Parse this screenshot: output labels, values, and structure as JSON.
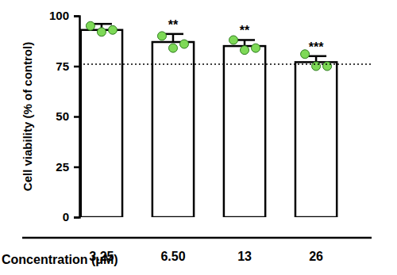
{
  "chart_data": {
    "type": "bar",
    "y_label": "Cell viability  (% of control)",
    "x_label": "Concentration (μM)",
    "categories": [
      "3.25",
      "6.50",
      "13",
      "26"
    ],
    "values": [
      93,
      87,
      85,
      77
    ],
    "errors": [
      3,
      4,
      3,
      3
    ],
    "points": {
      "color": "#7ed957",
      "values": [
        [
          95,
          92,
          93
        ],
        [
          90,
          84,
          86
        ],
        [
          88,
          83,
          84
        ],
        [
          81,
          75,
          75
        ]
      ]
    },
    "significance": [
      null,
      "**",
      "**",
      "***"
    ],
    "reference_line": 76,
    "color": "#ffffff",
    "ylim": [
      0,
      100
    ],
    "yticks": [
      0,
      25,
      50,
      75,
      100
    ],
    "grid": false
  }
}
